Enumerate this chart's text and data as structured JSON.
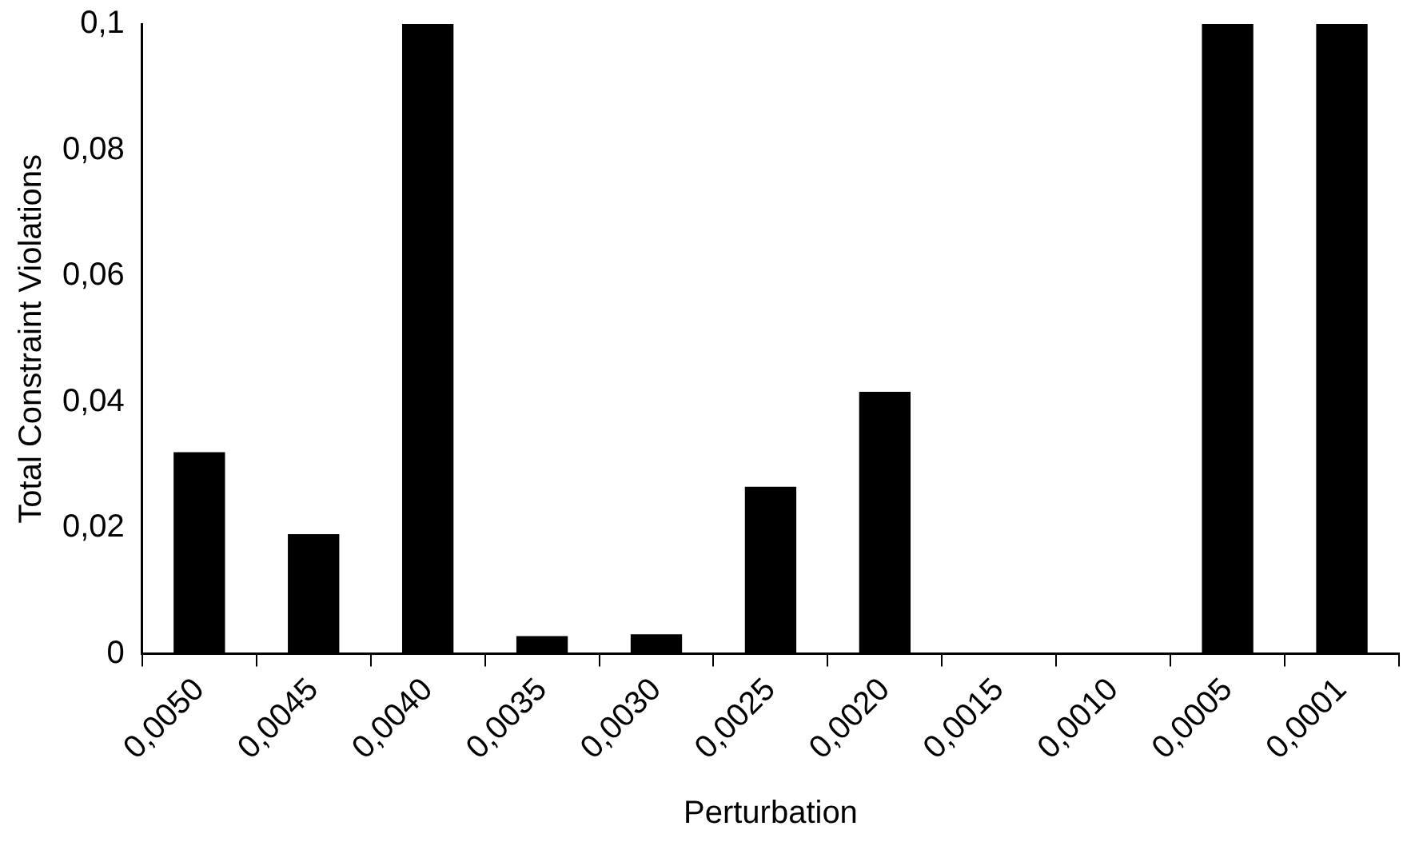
{
  "chart_data": {
    "type": "bar",
    "xlabel": "Perturbation",
    "ylabel": "Total Constraint Violations",
    "categories": [
      "0,0050",
      "0,0045",
      "0,0040",
      "0,0035",
      "0,0030",
      "0,0025",
      "0,0020",
      "0,0015",
      "0,0010",
      "0,0005",
      "0,0001"
    ],
    "values": [
      0.032,
      0.019,
      0.1,
      0.0028,
      0.0031,
      0.0265,
      0.0416,
      0,
      0.0002,
      0.1,
      0.1
    ],
    "color": "#000000",
    "ylim": [
      0,
      0.1
    ],
    "yticks": [
      0,
      {
        "value": 0.02,
        "label": "0,02"
      },
      {
        "value": 0.04,
        "label": "0,04"
      },
      {
        "value": 0.06,
        "label": "0,06"
      },
      {
        "value": 0.08,
        "label": "0,08"
      },
      {
        "value": 0.1,
        "label": "0,1"
      }
    ],
    "grid": false,
    "legend": false
  }
}
